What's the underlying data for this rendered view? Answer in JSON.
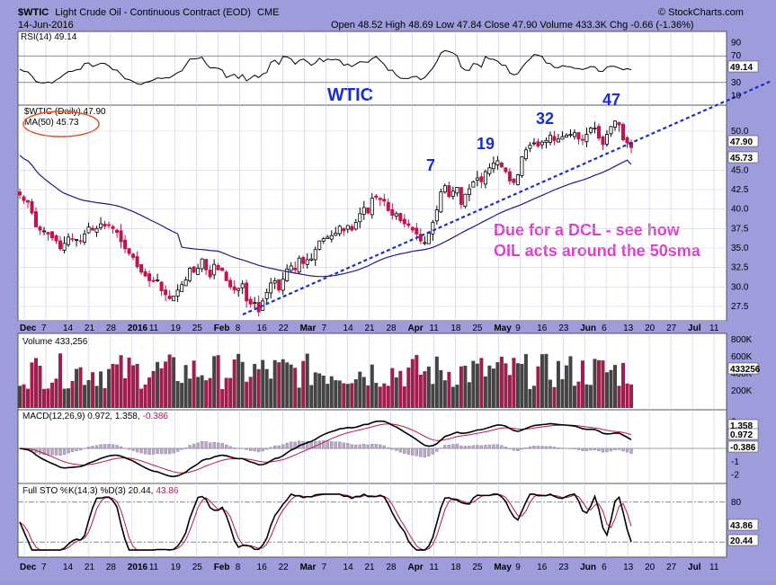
{
  "header": {
    "symbol": "$WTIC",
    "name": "Light Crude Oil - Continuous Contract (EOD)",
    "exchange": "CME",
    "date": "14-Jun-2016",
    "ohlc": "Open 48.52  High 48.69  Low 47.84  Close 47.90  Volume 433.3K  Chg -0.66 (-1.36%)",
    "watermark": "© StockCharts.com"
  },
  "rsi_panel": {
    "label": "RSI(14) 49.14",
    "ticks": [
      "90",
      "70",
      "50",
      "30",
      "10"
    ],
    "current": "49.14"
  },
  "price_panel": {
    "legend_price": "$WTIC (Daily) 47.90",
    "legend_ma": "MA(50) 45.73",
    "title": "WTIC",
    "annotation_line1": "Due for a DCL - see how",
    "annotation_line2": "OIL acts around the 50sma",
    "cycle_labels": [
      "7",
      "19",
      "32",
      "47"
    ],
    "ticks": [
      "50.0",
      "45.0",
      "42.5",
      "40.0",
      "37.5",
      "35.0",
      "32.5",
      "30.0",
      "27.5"
    ],
    "price_badge": "47.90",
    "ma_badge": "45.73"
  },
  "volume_panel": {
    "label": "Volume 433,256",
    "ticks": [
      "800K",
      "600K",
      "400K",
      "200K"
    ],
    "badge": "433256"
  },
  "macd_panel": {
    "label_main": "MACD(12,26,9) 0.972, 1.358,",
    "label_hist": "-0.386",
    "ticks": [
      "2",
      "1",
      "0",
      "-1",
      "-2"
    ],
    "badges": [
      "1.358",
      "0.972",
      "-0.386"
    ]
  },
  "sto_panel": {
    "label_main": "Full STO %K(14,3) %D(3) 20.44,",
    "label_d": "43.86",
    "ticks": [
      "80",
      "20"
    ],
    "badges": [
      "43.86",
      "20.44"
    ]
  },
  "x_axis": [
    "Dec",
    "7",
    "14",
    "21",
    "28",
    "2016",
    "11",
    "19",
    "25",
    "Feb",
    "8",
    "16",
    "22",
    "Mar",
    "7",
    "14",
    "21",
    "28",
    "Apr",
    "11",
    "18",
    "25",
    "May",
    "9",
    "16",
    "23",
    "Jun",
    "6",
    "13",
    "20",
    "27",
    "Jul",
    "11"
  ],
  "colors": {
    "up": "#000000",
    "down": "#c0154a",
    "volume_up": "#444444",
    "volume_down": "#9c1f4e",
    "ma": "#1c1c8a",
    "trendline": "#1a2ecf",
    "annotation": "#e13bd0",
    "cycle": "#1a2ecf",
    "panel_bg": "#ffffff"
  },
  "chart_data": {
    "type": "candlestick",
    "title": "$WTIC Light Crude Oil - Continuous Contract (EOD)",
    "x_range": [
      "2015-12-01",
      "2016-06-14"
    ],
    "price_ylim": [
      26,
      53
    ],
    "close_series": [
      41.8,
      41.1,
      40.9,
      39.5,
      37.7,
      37.3,
      37.2,
      36.8,
      36.3,
      35.9,
      34.9,
      35.6,
      36.4,
      36.1,
      36.1,
      35.9,
      36.8,
      37.7,
      37.3,
      37.5,
      38.1,
      37.8,
      37.9,
      37.5,
      37.0,
      35.8,
      34.9,
      34.3,
      33.8,
      32.6,
      31.9,
      31.4,
      30.8,
      30.7,
      30.9,
      29.5,
      29.0,
      28.5,
      28.8,
      29.6,
      30.3,
      30.9,
      32.4,
      31.9,
      32.4,
      33.6,
      32.2,
      31.3,
      32.9,
      32.2,
      32.1,
      30.8,
      30.0,
      29.6,
      29.8,
      30.4,
      28.2,
      27.8,
      28.0,
      26.8,
      28.2,
      29.3,
      30.5,
      30.8,
      29.6,
      31.0,
      32.3,
      32.7,
      32.2,
      33.7,
      33.0,
      33.5,
      33.6,
      34.8,
      35.9,
      36.2,
      36.4,
      36.6,
      36.9,
      37.8,
      37.2,
      37.9,
      37.3,
      38.3,
      39.4,
      40.2,
      39.5,
      41.4,
      41.5,
      41.2,
      41.0,
      39.8,
      39.2,
      39.4,
      38.5,
      38.1,
      37.9,
      37.3,
      36.8,
      35.9,
      35.7,
      36.9,
      38.3,
      39.9,
      42.2,
      43.0,
      41.6,
      42.3,
      42.8,
      40.6,
      41.9,
      42.6,
      43.5,
      44.0,
      43.5,
      44.8,
      45.3,
      45.9,
      46.2,
      45.4,
      44.8,
      43.6,
      43.4,
      44.4,
      46.7,
      47.6,
      48.2,
      48.5,
      48.1,
      48.6,
      48.8,
      49.5,
      48.8,
      49.0,
      49.3,
      49.5,
      49.6,
      49.8,
      49.0,
      48.9,
      49.6,
      50.4,
      50.4,
      49.1,
      48.3,
      49.6,
      50.6,
      51.3,
      50.8,
      48.9,
      48.5,
      47.9
    ],
    "ma50_end": 45.73,
    "cycle_annotations": [
      {
        "label": "7",
        "date": "2016-04-11"
      },
      {
        "label": "19",
        "date": "2016-04-28"
      },
      {
        "label": "32",
        "date": "2016-05-17"
      },
      {
        "label": "47",
        "date": "2016-06-08"
      }
    ],
    "trendline": {
      "from": [
        "2016-02-11",
        26.2
      ],
      "to": [
        "2016-07-12",
        53.0
      ]
    },
    "rsi": {
      "last": 49.14,
      "ylim": [
        0,
        100
      ],
      "levels": [
        70,
        30
      ]
    },
    "volume": {
      "last": 433256,
      "ylim": [
        0,
        800000
      ]
    },
    "macd": {
      "macd": 0.972,
      "signal": 1.358,
      "hist": -0.386,
      "ylim": [
        -2.5,
        2.5
      ]
    },
    "stochastic": {
      "k": 20.44,
      "d": 43.86,
      "ylim": [
        0,
        100
      ],
      "levels": [
        80,
        20
      ]
    },
    "xlabel": "",
    "ylabel": ""
  }
}
